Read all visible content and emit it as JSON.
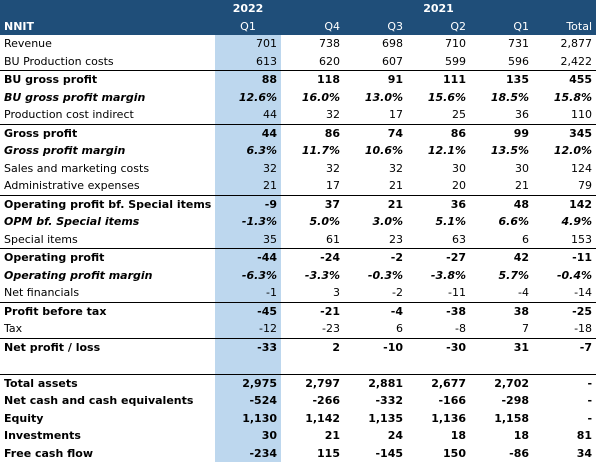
{
  "header": {
    "label": "NNIT",
    "year_2022": "2022",
    "year_2021": "2021",
    "columns": [
      "Q1",
      "Q4",
      "Q3",
      "Q2",
      "Q1",
      "Total"
    ]
  },
  "rows": [
    {
      "label": "Revenue",
      "values": [
        "701",
        "738",
        "698",
        "710",
        "731",
        "2,877"
      ],
      "style": "normal"
    },
    {
      "label": "BU Production costs",
      "values": [
        "613",
        "620",
        "607",
        "599",
        "596",
        "2,422"
      ],
      "style": "normal"
    },
    {
      "label": "BU gross profit",
      "values": [
        "88",
        "118",
        "91",
        "111",
        "135",
        "455"
      ],
      "style": "bold",
      "topline": true
    },
    {
      "label": "BU gross profit margin",
      "values": [
        "12.6%",
        "16.0%",
        "13.0%",
        "15.6%",
        "18.5%",
        "15.8%"
      ],
      "style": "ital"
    },
    {
      "label": "Production cost indirect",
      "values": [
        "44",
        "32",
        "17",
        "25",
        "36",
        "110"
      ],
      "style": "normal"
    },
    {
      "label": "Gross profit",
      "values": [
        "44",
        "86",
        "74",
        "86",
        "99",
        "345"
      ],
      "style": "bold",
      "topline": true
    },
    {
      "label": "Gross profit margin",
      "values": [
        "6.3%",
        "11.7%",
        "10.6%",
        "12.1%",
        "13.5%",
        "12.0%"
      ],
      "style": "ital"
    },
    {
      "label": "Sales and marketing costs",
      "values": [
        "32",
        "32",
        "32",
        "30",
        "30",
        "124"
      ],
      "style": "normal"
    },
    {
      "label": "Administrative expenses",
      "values": [
        "21",
        "17",
        "21",
        "20",
        "21",
        "79"
      ],
      "style": "normal"
    },
    {
      "label": "Operating profit bf. Special items",
      "values": [
        "-9",
        "37",
        "21",
        "36",
        "48",
        "142"
      ],
      "style": "bold",
      "topline": true
    },
    {
      "label": "OPM bf. Special items",
      "values": [
        "-1.3%",
        "5.0%",
        "3.0%",
        "5.1%",
        "6.6%",
        "4.9%"
      ],
      "style": "ital"
    },
    {
      "label": "Special items",
      "values": [
        "35",
        "61",
        "23",
        "63",
        "6",
        "153"
      ],
      "style": "normal"
    },
    {
      "label": "Operating profit",
      "values": [
        "-44",
        "-24",
        "-2",
        "-27",
        "42",
        "-11"
      ],
      "style": "bold",
      "topline": true
    },
    {
      "label": "Operating profit margin",
      "values": [
        "-6.3%",
        "-3.3%",
        "-0.3%",
        "-3.8%",
        "5.7%",
        "-0.4%"
      ],
      "style": "ital"
    },
    {
      "label": "Net financials",
      "values": [
        "-1",
        "3",
        "-2",
        "-11",
        "-4",
        "-14"
      ],
      "style": "normal"
    },
    {
      "label": "Profit before tax",
      "values": [
        "-45",
        "-21",
        "-4",
        "-38",
        "38",
        "-25"
      ],
      "style": "bold",
      "topline": true
    },
    {
      "label": "Tax",
      "values": [
        "-12",
        "-23",
        "6",
        "-8",
        "7",
        "-18"
      ],
      "style": "normal"
    },
    {
      "label": "Net profit / loss",
      "values": [
        "-33",
        "2",
        "-10",
        "-30",
        "31",
        "-7"
      ],
      "style": "bold",
      "topline": true
    }
  ],
  "balance_rows": [
    {
      "label": "Total assets",
      "values": [
        "2,975",
        "2,797",
        "2,881",
        "2,677",
        "2,702",
        "-"
      ]
    },
    {
      "label": "Net cash and cash equivalents",
      "values": [
        "-524",
        "-266",
        "-332",
        "-166",
        "-298",
        "-"
      ]
    },
    {
      "label": "Equity",
      "values": [
        "1,130",
        "1,142",
        "1,135",
        "1,136",
        "1,158",
        "-"
      ]
    },
    {
      "label": "Investments",
      "values": [
        "30",
        "21",
        "24",
        "18",
        "18",
        "81"
      ]
    },
    {
      "label": "Free cash flow",
      "values": [
        "-234",
        "115",
        "-145",
        "150",
        "-86",
        "34"
      ]
    }
  ]
}
